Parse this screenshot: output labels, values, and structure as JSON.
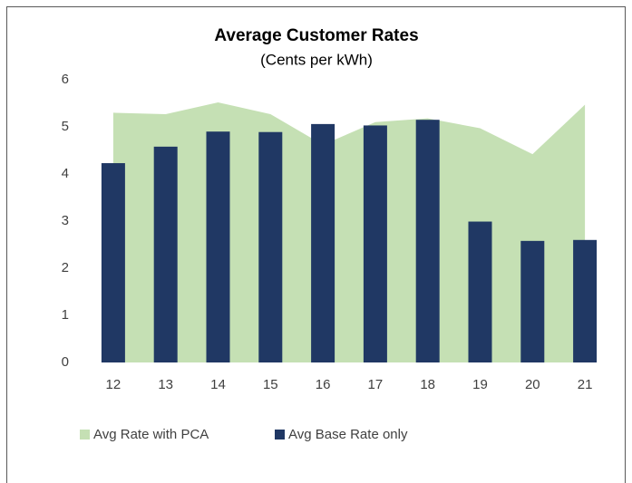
{
  "chart_data": {
    "type": "bar",
    "title": "Average Customer Rates",
    "subtitle": "(Cents per kWh)",
    "categories": [
      "12",
      "13",
      "14",
      "15",
      "16",
      "17",
      "18",
      "19",
      "20",
      "21"
    ],
    "series": [
      {
        "name": "Avg Rate with PCA",
        "type": "area",
        "color": "#c5e0b4",
        "values": [
          5.3,
          5.27,
          5.52,
          5.27,
          4.62,
          5.1,
          5.18,
          4.97,
          4.42,
          5.47
        ]
      },
      {
        "name": "Avg Base Rate only",
        "type": "bar",
        "color": "#203864",
        "values": [
          4.23,
          4.58,
          4.9,
          4.89,
          5.06,
          5.03,
          5.15,
          2.99,
          2.58,
          2.6
        ]
      }
    ],
    "ylim": [
      0,
      6
    ],
    "yticks": [
      0,
      1,
      2,
      3,
      4,
      5,
      6
    ],
    "grid": false,
    "legend": "bottom"
  }
}
